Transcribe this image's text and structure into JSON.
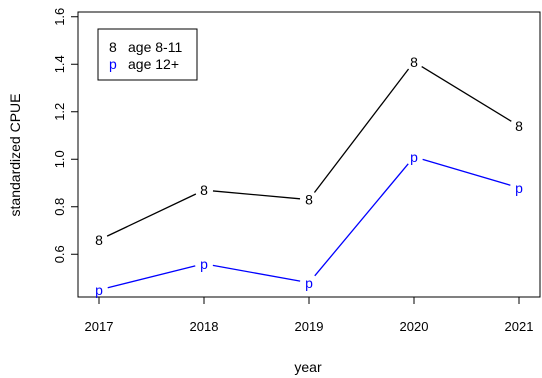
{
  "chart_data": {
    "type": "line",
    "title": "",
    "xlabel": "year",
    "ylabel": "standardized CPUE",
    "x": [
      2017,
      2018,
      2019,
      2020,
      2021
    ],
    "xlim": [
      2016.8,
      2021.2
    ],
    "ylim": [
      0.42,
      1.62
    ],
    "yticks": [
      "0.6",
      "0.8",
      "1.0",
      "1.2",
      "1.4",
      "1.6"
    ],
    "xticks": [
      "2017",
      "2018",
      "2019",
      "2020",
      "2021"
    ],
    "grid": false,
    "legend_position": "top-left",
    "series": [
      {
        "name": "age 8-11",
        "symbol": "8",
        "color": "#000000",
        "values": [
          0.66,
          0.87,
          0.83,
          1.41,
          1.14
        ]
      },
      {
        "name": "age 12+",
        "symbol": "p",
        "color": "#0000ff",
        "values": [
          0.45,
          0.56,
          0.48,
          1.01,
          0.88
        ]
      }
    ]
  }
}
